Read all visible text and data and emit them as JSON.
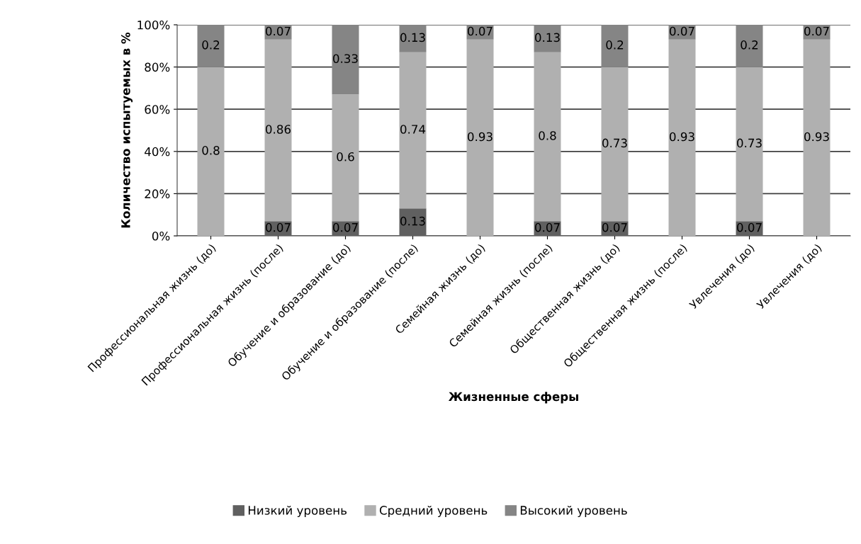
{
  "chart_data": {
    "type": "bar",
    "stacked": true,
    "xlabel": "Жизненные сферы",
    "ylabel": "Количество испытуемых в %",
    "categories": [
      "Профессиональная жизнь (до)",
      "Профессиональная жизнь (после)",
      "Обучение и образование (до)",
      "Обучение и образование (после)",
      "Семейная жизнь (до)",
      "Семейная жизнь (после)",
      "Общественная жизнь (до)",
      "Общественная жизнь (после)",
      "Увлечения (до)",
      "Увлечения (до)"
    ],
    "series": [
      {
        "name": "Низкий уровень",
        "color": "#606060",
        "values": [
          null,
          0.07,
          0.07,
          0.13,
          null,
          0.07,
          0.07,
          null,
          0.07,
          null
        ]
      },
      {
        "name": "Средний уровень",
        "color": "#b0b0b0",
        "values": [
          0.8,
          0.86,
          0.6,
          0.74,
          0.93,
          0.8,
          0.73,
          0.93,
          0.73,
          0.93
        ]
      },
      {
        "name": "Высокий уровень",
        "color": "#858585",
        "values": [
          0.2,
          0.07,
          0.33,
          0.13,
          0.07,
          0.13,
          0.2,
          0.07,
          0.2,
          0.07
        ]
      }
    ],
    "data_labels": true,
    "ylim": [
      0,
      1
    ],
    "yticks": [
      {
        "value": 0,
        "label": "0%"
      },
      {
        "value": 0.2,
        "label": "20%"
      },
      {
        "value": 0.4,
        "label": "40%"
      },
      {
        "value": 0.6,
        "label": "60%"
      },
      {
        "value": 0.8,
        "label": "80%"
      },
      {
        "value": 1,
        "label": "100%"
      }
    ],
    "grid": "y",
    "legend": "bottom"
  }
}
